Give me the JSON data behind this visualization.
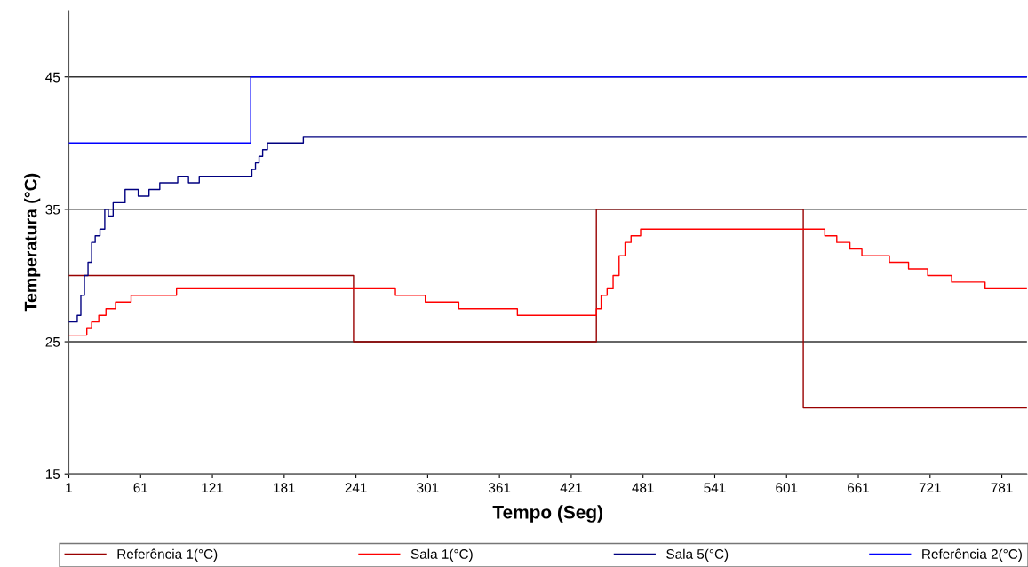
{
  "chart_data": {
    "type": "step",
    "xlabel": "Tempo (Seg)",
    "ylabel": "Temperatura (°C)",
    "xlim": [
      1,
      802
    ],
    "xticks": [
      1,
      61,
      121,
      181,
      241,
      301,
      361,
      421,
      481,
      541,
      601,
      661,
      721,
      781
    ],
    "ylim": [
      15,
      50
    ],
    "yticks": [
      15,
      25,
      35,
      45
    ],
    "grid": "y",
    "legend": "bottom",
    "marker": "none",
    "line_style": "solid",
    "series": [
      {
        "name": "Referência 1(°C)",
        "color": "#990000",
        "x": [
          1,
          239,
          442,
          615,
          802
        ],
        "values": [
          30,
          25,
          35,
          20,
          20
        ]
      },
      {
        "name": "Sala 1(°C)",
        "color": "#ff0000",
        "x": [
          1,
          16,
          20,
          26,
          32,
          40,
          53,
          91,
          274,
          299,
          327,
          376,
          442,
          446,
          451,
          456,
          461,
          466,
          471,
          479,
          486,
          633,
          643,
          654,
          664,
          687,
          703,
          719,
          739,
          767,
          802
        ],
        "values": [
          25.5,
          26,
          26.5,
          27,
          27.5,
          28,
          28.5,
          29,
          28.5,
          28,
          27.5,
          27,
          27.5,
          28.5,
          29,
          30,
          31.5,
          32.5,
          33,
          33.5,
          33.5,
          33,
          32.5,
          32,
          31.5,
          31,
          30.5,
          30,
          29.5,
          29,
          29
        ]
      },
      {
        "name": "Sala 5(°C)",
        "color": "#000080",
        "x": [
          1,
          8,
          11,
          14,
          17,
          20,
          23,
          27,
          31,
          34,
          38,
          48,
          59,
          68,
          77,
          92,
          101,
          110,
          154,
          157,
          160,
          163,
          167,
          197,
          802
        ],
        "values": [
          26.5,
          27,
          28.5,
          30,
          31,
          32.5,
          33,
          33.5,
          35,
          34.5,
          35.5,
          36.5,
          36,
          36.5,
          37,
          37.5,
          37,
          37.5,
          38,
          38.5,
          39,
          39.5,
          40,
          40.5,
          40.5
        ]
      },
      {
        "name": "Referência 2(°C)",
        "color": "#0000ff",
        "x": [
          1,
          153,
          802
        ],
        "values": [
          40,
          45,
          45
        ]
      }
    ]
  }
}
